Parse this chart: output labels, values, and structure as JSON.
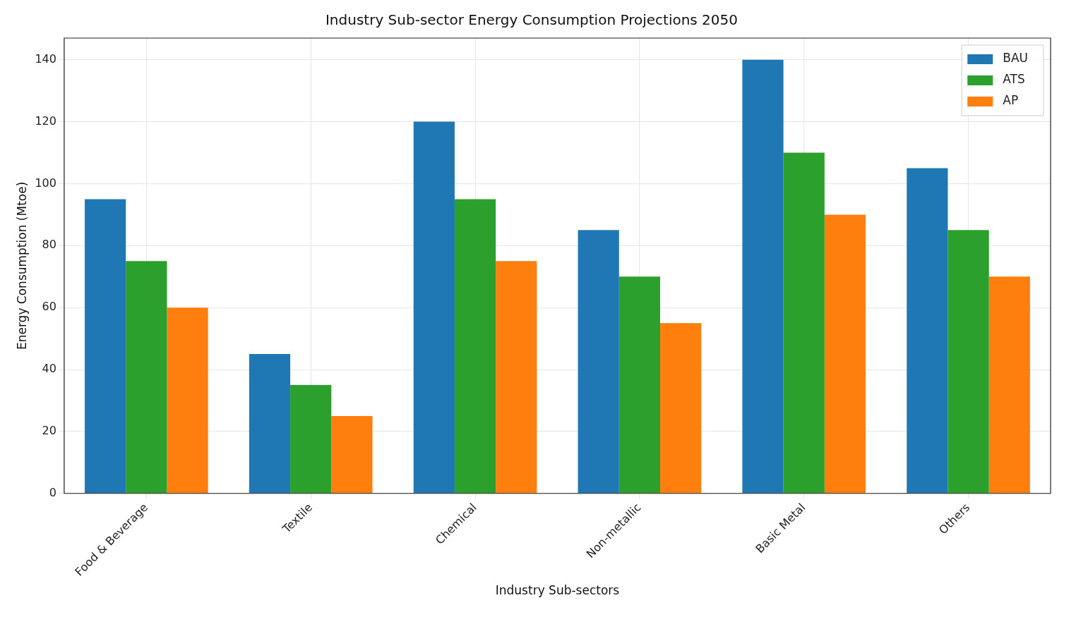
{
  "chart_data": {
    "type": "bar",
    "title": "Industry Sub-sector Energy Consumption Projections 2050",
    "xlabel": "Industry Sub-sectors",
    "ylabel": "Energy Consumption (Mtoe)",
    "categories": [
      "Food & Beverage",
      "Textile",
      "Chemical",
      "Non-metallic",
      "Basic Metal",
      "Others"
    ],
    "series": [
      {
        "name": "BAU",
        "color": "#1f77b4",
        "values": [
          95,
          45,
          120,
          85,
          140,
          105
        ]
      },
      {
        "name": "ATS",
        "color": "#2ca02c",
        "values": [
          75,
          35,
          95,
          70,
          110,
          85
        ]
      },
      {
        "name": "AP",
        "color": "#ff7f0e",
        "values": [
          60,
          25,
          75,
          55,
          90,
          70
        ]
      }
    ],
    "ylim": [
      0,
      147
    ],
    "yticks": [
      0,
      20,
      40,
      60,
      80,
      100,
      120,
      140
    ],
    "grid": true,
    "legend": "top right"
  }
}
